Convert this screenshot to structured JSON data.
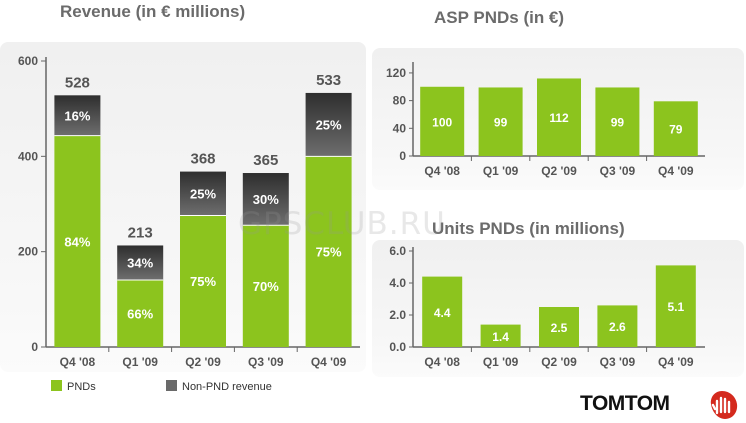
{
  "titles": {
    "revenue": "Revenue (in € millions)",
    "asp": "ASP PNDs (in €)",
    "units": "Units PNDs (in millions)"
  },
  "legend": {
    "pnd": "PNDs",
    "non_pnd": "Non-PND revenue"
  },
  "watermark": "GPSCLUB.RU",
  "logo": {
    "text": "TOMTOM"
  },
  "colors": {
    "pnd": "#8cc41e",
    "non_pnd": "#4a4a4a",
    "text": "#555555"
  },
  "chart_data": [
    {
      "type": "bar",
      "title": "Revenue (in € millions)",
      "categories": [
        "Q4 '08",
        "Q1 '09",
        "Q2 '09",
        "Q3 '09",
        "Q4 '09"
      ],
      "totals": [
        528,
        213,
        368,
        365,
        533
      ],
      "series": [
        {
          "name": "PNDs",
          "values": [
            443.5,
            140.6,
            276,
            255.5,
            400
          ],
          "labels": [
            "84%",
            "66%",
            "75%",
            "70%",
            "75%"
          ]
        },
        {
          "name": "Non-PND revenue",
          "values": [
            84.5,
            72.4,
            92,
            109.5,
            133
          ],
          "labels": [
            "16%",
            "34%",
            "25%",
            "30%",
            "25%"
          ]
        }
      ],
      "stacked": true,
      "yticks": [
        0,
        200,
        400,
        600
      ],
      "ylim": [
        0,
        600
      ],
      "legend": "bottom"
    },
    {
      "type": "bar",
      "title": "ASP PNDs (in €)",
      "categories": [
        "Q4 '08",
        "Q1 '09",
        "Q2 '09",
        "Q3 '09",
        "Q4 '09"
      ],
      "values": [
        100,
        99,
        112,
        99,
        79
      ],
      "yticks": [
        0,
        40,
        80,
        120
      ],
      "ylim": [
        0,
        130
      ]
    },
    {
      "type": "bar",
      "title": "Units PNDs (in millions)",
      "categories": [
        "Q4 '08",
        "Q1 '09",
        "Q2 '09",
        "Q3 '09",
        "Q4 '09"
      ],
      "values": [
        4.4,
        1.4,
        2.5,
        2.6,
        5.1
      ],
      "value_labels": [
        "4.4",
        "1.4",
        "2.5",
        "2.6",
        "5.1"
      ],
      "yticks": [
        "0.0",
        "2.0",
        "4.0",
        "6.0"
      ],
      "ylim": [
        0,
        6
      ]
    }
  ]
}
